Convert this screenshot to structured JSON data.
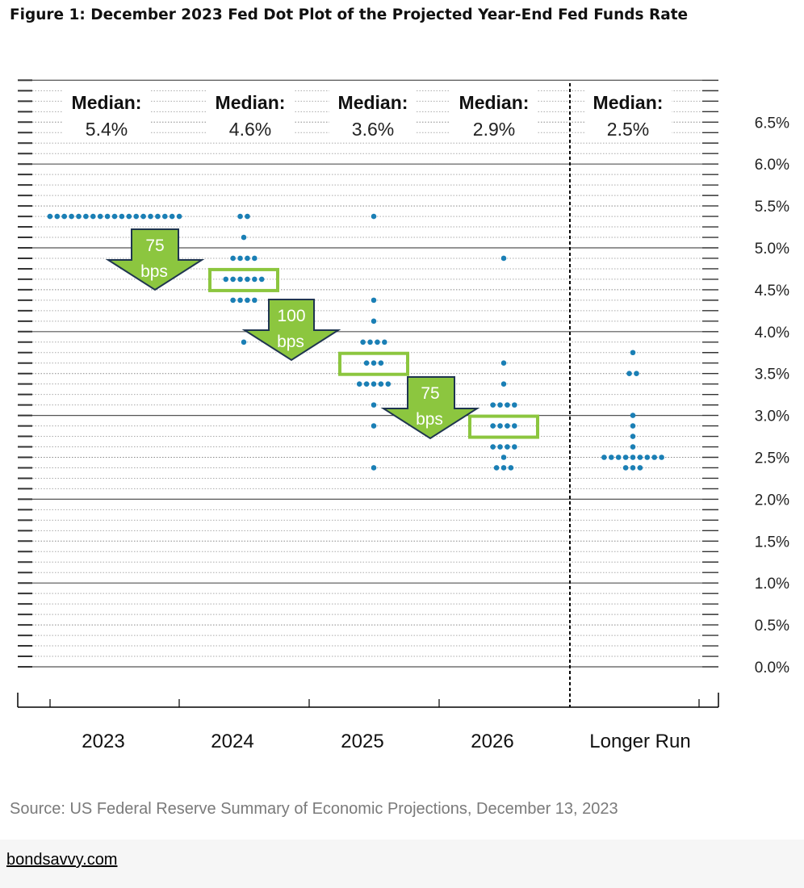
{
  "title": "Figure 1: December 2023 Fed Dot Plot of the Projected Year-End Fed Funds Rate",
  "source": "Source: US Federal Reserve Summary of Economic Projections, December 13, 2023",
  "footer_link": "bondsavvy.com",
  "colors": {
    "dot": "#1a7fb5",
    "arrow_fill": "#8cc63f",
    "arrow_stroke": "#1f3550",
    "median_box": "#8cc63f",
    "divider": "#000000"
  },
  "chart_data": {
    "type": "scatter",
    "title": "Figure 1: December 2023 Fed Dot Plot of the Projected Year-End Fed Funds Rate",
    "xlabel": "",
    "ylabel": "",
    "categories": [
      "2023",
      "2024",
      "2025",
      "2026",
      "Longer Run"
    ],
    "y_ticks": [
      "0.0%",
      "0.5%",
      "1.0%",
      "1.5%",
      "2.0%",
      "2.5%",
      "3.0%",
      "3.5%",
      "4.0%",
      "4.5%",
      "5.0%",
      "5.5%",
      "6.0%",
      "6.5%"
    ],
    "ylim": [
      0,
      7
    ],
    "grid": true,
    "median_heading": "Median:",
    "medians": [
      "5.4%",
      "4.6%",
      "3.6%",
      "2.9%",
      "2.5%"
    ],
    "dots": [
      {
        "category": "2023",
        "values": [
          {
            "rate": 5.375,
            "count": 19
          }
        ]
      },
      {
        "category": "2024",
        "values": [
          {
            "rate": 5.375,
            "count": 2
          },
          {
            "rate": 5.125,
            "count": 1
          },
          {
            "rate": 4.875,
            "count": 4
          },
          {
            "rate": 4.625,
            "count": 6
          },
          {
            "rate": 4.375,
            "count": 4
          },
          {
            "rate": 3.875,
            "count": 1
          }
        ]
      },
      {
        "category": "2025",
        "values": [
          {
            "rate": 5.375,
            "count": 1
          },
          {
            "rate": 4.375,
            "count": 1
          },
          {
            "rate": 4.125,
            "count": 1
          },
          {
            "rate": 3.875,
            "count": 4
          },
          {
            "rate": 3.625,
            "count": 3
          },
          {
            "rate": 3.375,
            "count": 5
          },
          {
            "rate": 3.125,
            "count": 1
          },
          {
            "rate": 2.875,
            "count": 1
          },
          {
            "rate": 2.375,
            "count": 1
          }
        ]
      },
      {
        "category": "2026",
        "values": [
          {
            "rate": 4.875,
            "count": 1
          },
          {
            "rate": 3.625,
            "count": 1
          },
          {
            "rate": 3.375,
            "count": 1
          },
          {
            "rate": 3.125,
            "count": 4
          },
          {
            "rate": 2.875,
            "count": 4
          },
          {
            "rate": 2.625,
            "count": 4
          },
          {
            "rate": 2.5,
            "count": 1
          },
          {
            "rate": 2.375,
            "count": 3
          }
        ]
      },
      {
        "category": "Longer Run",
        "values": [
          {
            "rate": 3.75,
            "count": 1
          },
          {
            "rate": 3.5,
            "count": 2
          },
          {
            "rate": 3.0,
            "count": 1
          },
          {
            "rate": 2.875,
            "count": 1
          },
          {
            "rate": 2.75,
            "count": 1
          },
          {
            "rate": 2.625,
            "count": 1
          },
          {
            "rate": 2.5,
            "count": 9
          },
          {
            "rate": 2.375,
            "count": 3
          }
        ]
      }
    ],
    "median_boxes": [
      {
        "category": "2024",
        "rate": 4.625
      },
      {
        "category": "2025",
        "rate": 3.625
      },
      {
        "category": "2026",
        "rate": 2.875
      }
    ],
    "annotations": [
      {
        "number": "75",
        "unit": "bps",
        "from": "2023",
        "to": "2024"
      },
      {
        "number": "100",
        "unit": "bps",
        "from": "2024",
        "to": "2025"
      },
      {
        "number": "75",
        "unit": "bps",
        "from": "2025",
        "to": "2026"
      }
    ]
  }
}
